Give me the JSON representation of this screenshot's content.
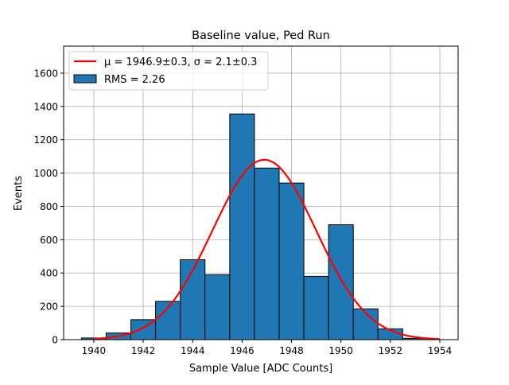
{
  "chart_data": {
    "type": "bar",
    "title": "Baseline value, Ped Run",
    "xlabel": "Sample Value [ADC Counts]",
    "ylabel": "Events",
    "xlim": [
      1938.78,
      1954.74
    ],
    "ylim": [
      0,
      1762
    ],
    "grid": true,
    "legend_placement": "top-left",
    "xticks": [
      1940,
      1942,
      1944,
      1946,
      1948,
      1950,
      1952,
      1954
    ],
    "yticks": [
      0,
      200,
      400,
      600,
      800,
      1000,
      1200,
      1400,
      1600
    ],
    "histogram": {
      "name": "RMS = 2.26",
      "color": "#1f77b4",
      "bin_edges": [
        1939.5,
        1940.5,
        1941.5,
        1942.5,
        1943.5,
        1944.5,
        1945.5,
        1946.5,
        1947.5,
        1948.5,
        1949.5,
        1950.5,
        1951.5,
        1952.5,
        1953.5
      ],
      "values": [
        10,
        40,
        120,
        230,
        480,
        390,
        1355,
        1030,
        940,
        380,
        690,
        185,
        65,
        8
      ]
    },
    "fit": {
      "name": "μ = 1946.9±0.3, σ = 2.1±0.3",
      "color": "#ff0000",
      "type": "gaussian",
      "mu": 1946.9,
      "sigma": 2.1,
      "amplitude": 1080,
      "x_range": [
        1940,
        1954
      ]
    }
  }
}
